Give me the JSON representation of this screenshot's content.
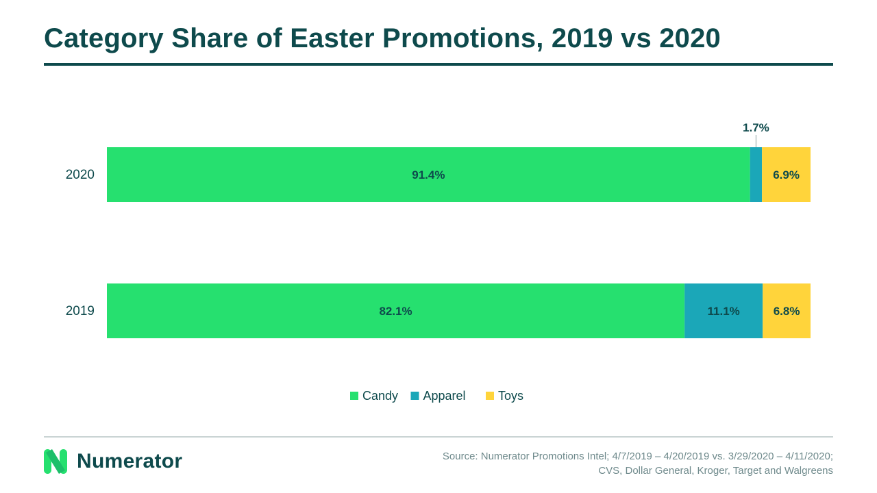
{
  "title": "Category Share of Easter Promotions, 2019 vs 2020",
  "chart_data": {
    "type": "bar",
    "orientation": "horizontal",
    "stacked": true,
    "categories": [
      "2020",
      "2019"
    ],
    "series": [
      {
        "name": "Candy",
        "values": [
          91.4,
          82.1
        ],
        "labels": [
          "91.4%",
          "82.1%"
        ],
        "color": "#26e06f"
      },
      {
        "name": "Apparel",
        "values": [
          1.7,
          11.1
        ],
        "labels": [
          "1.7%",
          "11.1%"
        ],
        "color": "#1ba7b8"
      },
      {
        "name": "Toys",
        "values": [
          6.9,
          6.8
        ],
        "labels": [
          "6.9%",
          "6.8%"
        ],
        "color": "#ffd43b"
      }
    ],
    "xlim": [
      0,
      100
    ],
    "grid": false,
    "legend_position": "bottom"
  },
  "footer": {
    "logo_text": "Numerator",
    "source_line1": "Source: Numerator Promotions Intel; 4/7/2019 – 4/20/2019 vs. 3/29/2020 – 4/11/2020;",
    "source_line2": "CVS, Dollar General, Kroger, Target and Walgreens"
  },
  "colors": {
    "text": "#0e4a4c",
    "candy": "#26e06f",
    "apparel": "#1ba7b8",
    "toys": "#ffd43b"
  }
}
